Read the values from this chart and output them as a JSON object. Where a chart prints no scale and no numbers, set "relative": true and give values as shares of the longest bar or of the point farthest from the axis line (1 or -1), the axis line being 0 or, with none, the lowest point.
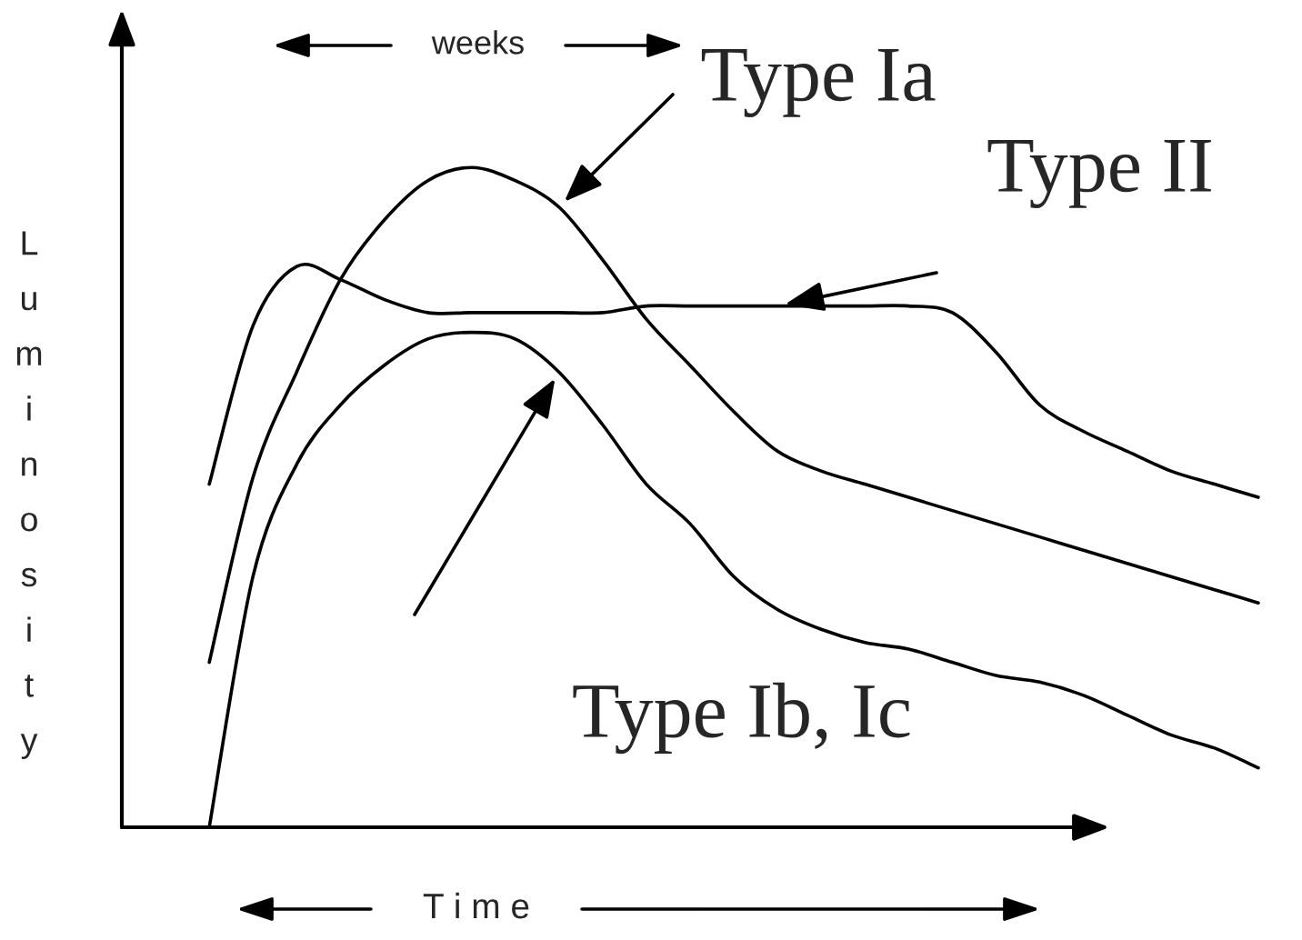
{
  "chart_data": {
    "type": "line",
    "relative": true,
    "xlabel": "T i m e",
    "ylabel": "Luminosity",
    "annotations": [
      "weeks"
    ],
    "categories": [
      null,
      null,
      null,
      null,
      null,
      null,
      null,
      null,
      null,
      null,
      null,
      null,
      null,
      null,
      null,
      null,
      null,
      null,
      null,
      null,
      null,
      null,
      null,
      null,
      null
    ],
    "series": [
      {
        "name": "Type Ia",
        "color": "#000000",
        "values": [
          0.25,
          0.53,
          0.69,
          0.83,
          0.92,
          0.98,
          1.0,
          0.98,
          0.94,
          0.86,
          0.77,
          0.7,
          0.63,
          0.57,
          0.54,
          0.52,
          0.5,
          0.48,
          0.46,
          0.44,
          0.42,
          0.4,
          0.38,
          0.36,
          0.34
        ]
      },
      {
        "name": "Type II",
        "color": "#000000",
        "values": [
          0.52,
          0.76,
          0.85,
          0.83,
          0.8,
          0.78,
          0.78,
          0.78,
          0.78,
          0.78,
          0.79,
          0.79,
          0.79,
          0.79,
          0.79,
          0.79,
          0.79,
          0.78,
          0.72,
          0.64,
          0.6,
          0.57,
          0.54,
          0.52,
          0.5
        ]
      },
      {
        "name": "Type Ib, Ic",
        "color": "#000000",
        "values": [
          0.0,
          0.38,
          0.55,
          0.64,
          0.7,
          0.74,
          0.75,
          0.74,
          0.69,
          0.61,
          0.52,
          0.46,
          0.38,
          0.33,
          0.3,
          0.28,
          0.27,
          0.25,
          0.23,
          0.22,
          0.2,
          0.17,
          0.14,
          0.12,
          0.09
        ]
      }
    ]
  }
}
